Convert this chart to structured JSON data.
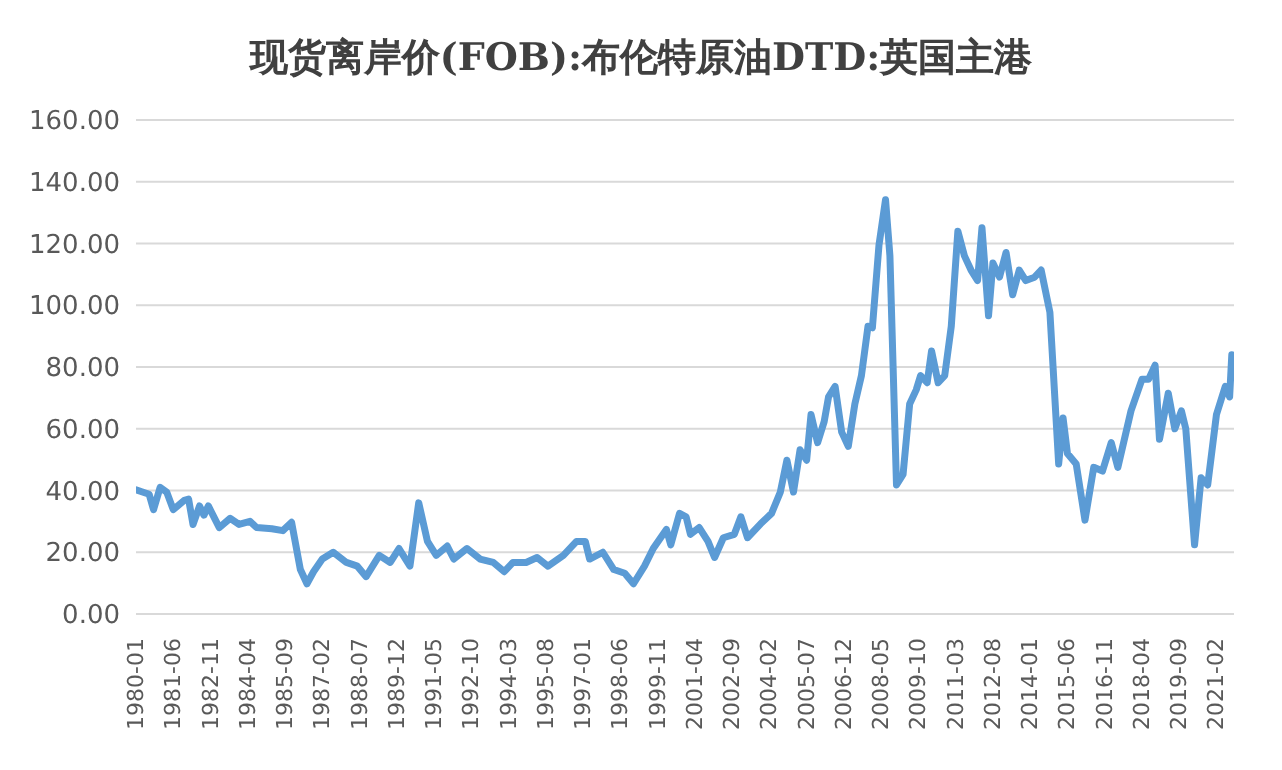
{
  "chart_data": {
    "type": "line",
    "title": "现货离岸价(FOB):布伦特原油DTD:英国主港",
    "x": [
      "1980-01",
      "1980-07",
      "1980-09",
      "1980-12",
      "1981-03",
      "1981-06",
      "1981-11",
      "1982-01",
      "1982-03",
      "1982-06",
      "1982-08",
      "1982-10",
      "1983-03",
      "1983-08",
      "1983-12",
      "1984-05",
      "1984-08",
      "1985-03",
      "1985-08",
      "1985-12",
      "1986-04",
      "1986-07",
      "1986-10",
      "1987-02",
      "1987-07",
      "1988-01",
      "1988-06",
      "1988-10",
      "1989-04",
      "1989-09",
      "1990-01",
      "1990-06",
      "1990-10",
      "1991-02",
      "1991-06",
      "1991-11",
      "1992-02",
      "1992-08",
      "1993-02",
      "1993-08",
      "1994-01",
      "1994-05",
      "1994-11",
      "1995-04",
      "1995-09",
      "1996-04",
      "1996-10",
      "1997-02",
      "1997-04",
      "1997-10",
      "1998-03",
      "1998-08",
      "1998-12",
      "1999-05",
      "1999-09",
      "2000-03",
      "2000-05",
      "2000-09",
      "2000-12",
      "2001-02",
      "2001-06",
      "2001-10",
      "2002-01",
      "2002-05",
      "2002-10",
      "2003-01",
      "2003-04",
      "2003-10",
      "2004-03",
      "2004-07",
      "2004-10",
      "2005-01",
      "2005-04",
      "2005-07",
      "2005-09",
      "2005-12",
      "2006-03",
      "2006-05",
      "2006-08",
      "2006-11",
      "2007-02",
      "2007-05",
      "2007-08",
      "2007-11",
      "2008-01",
      "2008-04",
      "2008-07",
      "2008-09",
      "2008-12",
      "2009-03",
      "2009-06",
      "2009-09",
      "2009-11",
      "2010-02",
      "2010-04",
      "2010-07",
      "2010-10",
      "2011-01",
      "2011-04",
      "2011-07",
      "2011-10",
      "2012-01",
      "2012-03",
      "2012-06",
      "2012-08",
      "2012-11",
      "2013-02",
      "2013-05",
      "2013-08",
      "2013-11",
      "2014-03",
      "2014-06",
      "2014-10",
      "2015-02",
      "2015-04",
      "2015-06",
      "2015-10",
      "2016-02",
      "2016-06",
      "2016-10",
      "2017-02",
      "2017-05",
      "2017-11",
      "2018-04",
      "2018-07",
      "2018-10",
      "2018-12",
      "2019-04",
      "2019-07",
      "2019-10",
      "2019-12",
      "2020-04",
      "2020-07",
      "2020-10",
      "2021-02",
      "2021-06",
      "2021-08",
      "2021-09",
      "2021-10"
    ],
    "series": [
      {
        "color": "#5b9bd5",
        "values": [
          40.2,
          38.8,
          33.8,
          41,
          39.5,
          33.8,
          36.8,
          37.2,
          29,
          35,
          32,
          35,
          28,
          31,
          29,
          30,
          28,
          27.6,
          27,
          29.7,
          14.4,
          9.8,
          13.7,
          17.8,
          20,
          16.7,
          15.5,
          12.1,
          19,
          16.7,
          21.2,
          15.5,
          36,
          23.5,
          19,
          22,
          17.8,
          21.2,
          17.8,
          16.7,
          13.7,
          16.7,
          16.7,
          18.3,
          15.5,
          19,
          23.5,
          23.5,
          17.8,
          20,
          14.4,
          13.2,
          9.8,
          15.5,
          21.2,
          27.4,
          22.4,
          32.6,
          31.5,
          25.8,
          28,
          23.5,
          18.3,
          24.7,
          25.8,
          31.5,
          24.7,
          29.2,
          32.6,
          39.5,
          49.8,
          39.5,
          53.2,
          49.8,
          64.6,
          55.5,
          62.3,
          70.3,
          73.7,
          58.9,
          54.3,
          68,
          77.2,
          93.2,
          92.7,
          119.4,
          134.2,
          116,
          41.8,
          45.2,
          68,
          72.6,
          77.2,
          74.9,
          85.2,
          74.9,
          77.2,
          93.2,
          124,
          116,
          111.4,
          108,
          125.1,
          96.6,
          113.7,
          109.1,
          117.1,
          103.4,
          111.4,
          108,
          109.1,
          111.4,
          97.7,
          48.6,
          63.5,
          52,
          48.6,
          30.4,
          47.5,
          46.3,
          55.5,
          47.5,
          65.8,
          76,
          76,
          80.6,
          56.6,
          71.5,
          60,
          65.8,
          60,
          22.4,
          44.1,
          41.8,
          64.6,
          73.7,
          70.3,
          84,
          81
        ]
      }
    ],
    "xlim": [
      "1980-01",
      "2021-10"
    ],
    "xticks": [
      "1980-01",
      "1981-06",
      "1982-11",
      "1984-04",
      "1985-09",
      "1987-02",
      "1988-07",
      "1989-12",
      "1991-05",
      "1992-10",
      "1994-03",
      "1995-08",
      "1997-01",
      "1998-06",
      "1999-11",
      "2001-04",
      "2002-09",
      "2004-02",
      "2005-07",
      "2006-12",
      "2008-05",
      "2009-10",
      "2011-03",
      "2012-08",
      "2014-01",
      "2015-06",
      "2016-11",
      "2018-04",
      "2019-09",
      "2021-02"
    ],
    "ylim": [
      0,
      160
    ],
    "yticks": [
      {
        "value": 0,
        "label": "0.00"
      },
      {
        "value": 20,
        "label": "20.00"
      },
      {
        "value": 40,
        "label": "40.00"
      },
      {
        "value": 60,
        "label": "60.00"
      },
      {
        "value": 80,
        "label": "80.00"
      },
      {
        "value": 100,
        "label": "100.00"
      },
      {
        "value": 120,
        "label": "120.00"
      },
      {
        "value": 140,
        "label": "140.00"
      },
      {
        "value": 160,
        "label": "160.00"
      }
    ],
    "grid": "y",
    "legend": false,
    "marker": "none",
    "line_style": "solid"
  }
}
